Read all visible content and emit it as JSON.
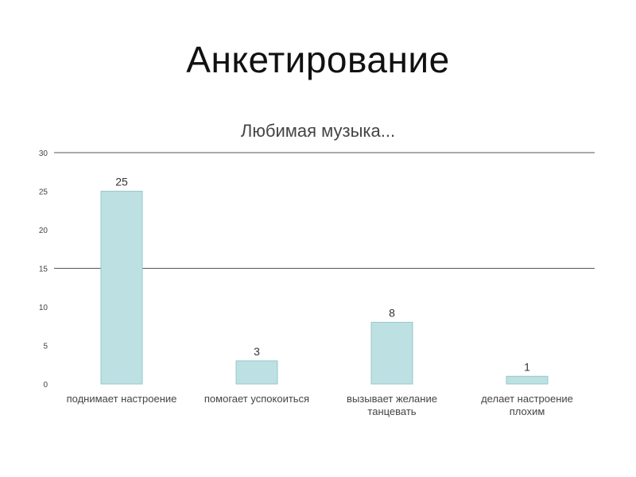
{
  "slide": {
    "title": "Анкетирование"
  },
  "chart_data": {
    "type": "bar",
    "title": "Любимая музыка...",
    "categories": [
      [
        "поднимает настроение"
      ],
      [
        "помогает успокоиться"
      ],
      [
        "вызывает желание",
        "танцевать"
      ],
      [
        "делает настроение",
        "плохим"
      ]
    ],
    "values": [
      25,
      3,
      8,
      1
    ],
    "data_labels": [
      "25",
      "3",
      "8",
      "1"
    ],
    "xlabel": "",
    "ylabel": "",
    "ylim": [
      0,
      30
    ],
    "yticks": [
      0,
      5,
      10,
      15,
      20,
      25,
      30
    ],
    "gridlines_at": [
      15,
      30
    ],
    "legend": "none",
    "colors": {
      "bar_fill": "#bde0e3",
      "bar_stroke": "#96c9ce",
      "gridline": "#555555",
      "tick_text": "#444444",
      "label_text": "#333333",
      "title_text": "#444444"
    }
  }
}
